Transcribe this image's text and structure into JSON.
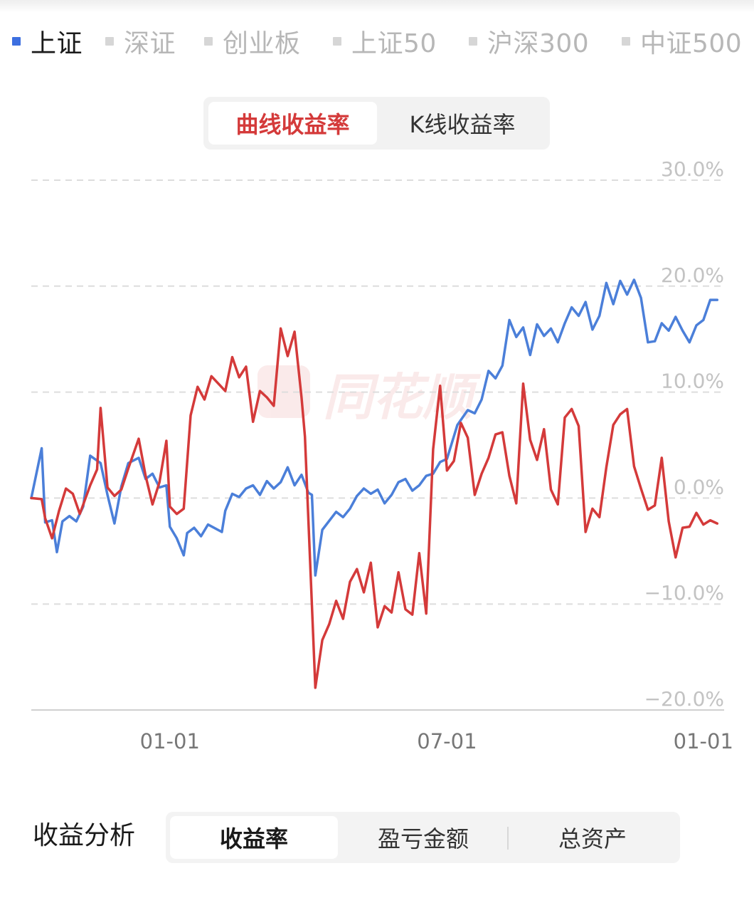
{
  "legend": {
    "items": [
      {
        "label": "上证",
        "color": "#3d6fe0",
        "active": true
      },
      {
        "label": "深证",
        "color": "#d6d6d6",
        "active": false
      },
      {
        "label": "创业板",
        "color": "#d6d6d6",
        "active": false
      },
      {
        "label": "上证50",
        "color": "#d6d6d6",
        "active": false
      },
      {
        "label": "沪深300",
        "color": "#d6d6d6",
        "active": false
      },
      {
        "label": "中证500",
        "color": "#d6d6d6",
        "active": false
      }
    ]
  },
  "toggle": {
    "curve_label": "曲线收益率",
    "kline_label": "K线收益率"
  },
  "watermark": "同花顺",
  "analysis": {
    "title": "收益分析",
    "tabs": {
      "yield": "收益率",
      "pnl": "盈亏金额",
      "assets": "总资产"
    }
  },
  "colors": {
    "benchmark": "#4b7fd9",
    "account": "#d43a3a",
    "accent": "#d43a3a"
  },
  "chart_data": {
    "type": "line",
    "y_ticks": [
      "30.0%",
      "20.0%",
      "10.0%",
      "0.0%",
      "−10.0%",
      "−20.0%"
    ],
    "x_ticks": [
      {
        "label": "01-01",
        "x": 0.2
      },
      {
        "label": "07-01",
        "x": 0.6
      },
      {
        "label": "01-01",
        "x": 0.97
      }
    ],
    "ylim": [
      -20,
      30
    ],
    "xlim": [
      0,
      1
    ],
    "grid": true,
    "series": [
      {
        "name": "上证",
        "color": "#4b7fd9",
        "points": [
          [
            0,
            0
          ],
          [
            0.015,
            4.7
          ],
          [
            0.02,
            -2.3
          ],
          [
            0.03,
            -2.1
          ],
          [
            0.037,
            -5.1
          ],
          [
            0.045,
            -2.2
          ],
          [
            0.055,
            -1.7
          ],
          [
            0.065,
            -2.2
          ],
          [
            0.075,
            -0.8
          ],
          [
            0.085,
            4.0
          ],
          [
            0.1,
            3.3
          ],
          [
            0.11,
            0.3
          ],
          [
            0.12,
            -2.4
          ],
          [
            0.13,
            1.1
          ],
          [
            0.14,
            3.3
          ],
          [
            0.155,
            3.8
          ],
          [
            0.165,
            1.8
          ],
          [
            0.175,
            2.3
          ],
          [
            0.185,
            1.0
          ],
          [
            0.195,
            1.2
          ],
          [
            0.2,
            -2.7
          ],
          [
            0.21,
            -3.8
          ],
          [
            0.22,
            -5.4
          ],
          [
            0.225,
            -3.3
          ],
          [
            0.235,
            -2.8
          ],
          [
            0.245,
            -3.6
          ],
          [
            0.255,
            -2.5
          ],
          [
            0.275,
            -3.2
          ],
          [
            0.28,
            -1.2
          ],
          [
            0.29,
            0.4
          ],
          [
            0.3,
            0.1
          ],
          [
            0.31,
            0.9
          ],
          [
            0.32,
            1.2
          ],
          [
            0.33,
            0.3
          ],
          [
            0.34,
            1.6
          ],
          [
            0.35,
            0.9
          ],
          [
            0.36,
            1.5
          ],
          [
            0.37,
            2.9
          ],
          [
            0.38,
            1.2
          ],
          [
            0.39,
            2.2
          ],
          [
            0.4,
            0.5
          ],
          [
            0.405,
            0.3
          ],
          [
            0.41,
            -7.3
          ],
          [
            0.42,
            -3.0
          ],
          [
            0.44,
            -1.3
          ],
          [
            0.45,
            -1.8
          ],
          [
            0.46,
            -1.0
          ],
          [
            0.47,
            0.2
          ],
          [
            0.48,
            0.9
          ],
          [
            0.49,
            0.4
          ],
          [
            0.5,
            0.8
          ],
          [
            0.51,
            -0.5
          ],
          [
            0.52,
            0.3
          ],
          [
            0.53,
            1.5
          ],
          [
            0.54,
            1.8
          ],
          [
            0.55,
            0.7
          ],
          [
            0.56,
            1.2
          ],
          [
            0.57,
            2.1
          ],
          [
            0.58,
            2.3
          ],
          [
            0.59,
            3.4
          ],
          [
            0.6,
            3.7
          ],
          [
            0.615,
            6.9
          ],
          [
            0.63,
            8.3
          ],
          [
            0.64,
            8.0
          ],
          [
            0.65,
            9.3
          ],
          [
            0.66,
            12.0
          ],
          [
            0.67,
            11.3
          ],
          [
            0.68,
            12.5
          ],
          [
            0.69,
            16.8
          ],
          [
            0.7,
            15.2
          ],
          [
            0.71,
            16.1
          ],
          [
            0.72,
            13.5
          ],
          [
            0.73,
            16.4
          ],
          [
            0.74,
            15.3
          ],
          [
            0.75,
            16.0
          ],
          [
            0.76,
            14.7
          ],
          [
            0.77,
            16.5
          ],
          [
            0.78,
            18.0
          ],
          [
            0.79,
            17.2
          ],
          [
            0.8,
            18.5
          ],
          [
            0.81,
            15.9
          ],
          [
            0.82,
            17.2
          ],
          [
            0.83,
            20.3
          ],
          [
            0.84,
            18.3
          ],
          [
            0.85,
            20.5
          ],
          [
            0.86,
            19.2
          ],
          [
            0.87,
            20.6
          ],
          [
            0.88,
            18.9
          ],
          [
            0.89,
            14.7
          ],
          [
            0.9,
            14.8
          ],
          [
            0.91,
            16.5
          ],
          [
            0.92,
            15.8
          ],
          [
            0.93,
            17.1
          ],
          [
            0.94,
            15.8
          ],
          [
            0.95,
            14.7
          ],
          [
            0.96,
            16.3
          ],
          [
            0.97,
            16.8
          ],
          [
            0.98,
            18.7
          ],
          [
            0.99,
            18.7
          ]
        ]
      },
      {
        "name": "",
        "color": "#d43a3a",
        "points": [
          [
            0,
            0
          ],
          [
            0.015,
            -0.1
          ],
          [
            0.02,
            -1.9
          ],
          [
            0.03,
            -3.8
          ],
          [
            0.04,
            -1.2
          ],
          [
            0.05,
            0.9
          ],
          [
            0.06,
            0.4
          ],
          [
            0.07,
            -1.5
          ],
          [
            0.085,
            1.2
          ],
          [
            0.095,
            2.7
          ],
          [
            0.1,
            8.5
          ],
          [
            0.11,
            1.0
          ],
          [
            0.12,
            0.2
          ],
          [
            0.13,
            0.8
          ],
          [
            0.14,
            2.8
          ],
          [
            0.155,
            5.6
          ],
          [
            0.165,
            2.1
          ],
          [
            0.175,
            -0.6
          ],
          [
            0.185,
            1.5
          ],
          [
            0.195,
            5.4
          ],
          [
            0.2,
            -0.8
          ],
          [
            0.21,
            -1.5
          ],
          [
            0.22,
            -1.0
          ],
          [
            0.23,
            7.8
          ],
          [
            0.24,
            10.5
          ],
          [
            0.25,
            9.3
          ],
          [
            0.26,
            11.5
          ],
          [
            0.27,
            10.8
          ],
          [
            0.28,
            10.1
          ],
          [
            0.29,
            13.3
          ],
          [
            0.3,
            11.4
          ],
          [
            0.31,
            12.4
          ],
          [
            0.32,
            7.2
          ],
          [
            0.33,
            10.1
          ],
          [
            0.34,
            9.5
          ],
          [
            0.35,
            8.7
          ],
          [
            0.36,
            16.0
          ],
          [
            0.37,
            13.4
          ],
          [
            0.38,
            15.7
          ],
          [
            0.39,
            9.5
          ],
          [
            0.395,
            5.8
          ],
          [
            0.41,
            -17.9
          ],
          [
            0.42,
            -13.4
          ],
          [
            0.43,
            -11.9
          ],
          [
            0.44,
            -9.7
          ],
          [
            0.45,
            -11.4
          ],
          [
            0.46,
            -7.9
          ],
          [
            0.47,
            -6.7
          ],
          [
            0.48,
            -8.9
          ],
          [
            0.49,
            -6.1
          ],
          [
            0.5,
            -12.2
          ],
          [
            0.51,
            -10.2
          ],
          [
            0.52,
            -10.8
          ],
          [
            0.53,
            -7.0
          ],
          [
            0.54,
            -10.5
          ],
          [
            0.55,
            -11.0
          ],
          [
            0.56,
            -5.2
          ],
          [
            0.57,
            -10.9
          ],
          [
            0.58,
            4.6
          ],
          [
            0.59,
            10.6
          ],
          [
            0.6,
            2.6
          ],
          [
            0.61,
            3.5
          ],
          [
            0.62,
            7.1
          ],
          [
            0.63,
            5.7
          ],
          [
            0.64,
            0.3
          ],
          [
            0.65,
            2.3
          ],
          [
            0.66,
            3.8
          ],
          [
            0.67,
            6.0
          ],
          [
            0.68,
            6.2
          ],
          [
            0.69,
            2.1
          ],
          [
            0.7,
            -0.5
          ],
          [
            0.71,
            10.8
          ],
          [
            0.72,
            5.5
          ],
          [
            0.73,
            3.6
          ],
          [
            0.74,
            6.5
          ],
          [
            0.75,
            0.8
          ],
          [
            0.76,
            -0.6
          ],
          [
            0.77,
            7.6
          ],
          [
            0.78,
            8.4
          ],
          [
            0.79,
            6.8
          ],
          [
            0.8,
            -3.2
          ],
          [
            0.81,
            -1.0
          ],
          [
            0.82,
            -1.8
          ],
          [
            0.83,
            2.9
          ],
          [
            0.84,
            6.9
          ],
          [
            0.85,
            7.9
          ],
          [
            0.86,
            8.4
          ],
          [
            0.87,
            3.0
          ],
          [
            0.88,
            0.9
          ],
          [
            0.89,
            -1.1
          ],
          [
            0.9,
            -0.7
          ],
          [
            0.91,
            3.8
          ],
          [
            0.92,
            -2.2
          ],
          [
            0.93,
            -5.6
          ],
          [
            0.94,
            -2.8
          ],
          [
            0.95,
            -2.7
          ],
          [
            0.96,
            -1.4
          ],
          [
            0.97,
            -2.5
          ],
          [
            0.98,
            -2.1
          ],
          [
            0.99,
            -2.4
          ]
        ]
      }
    ]
  }
}
